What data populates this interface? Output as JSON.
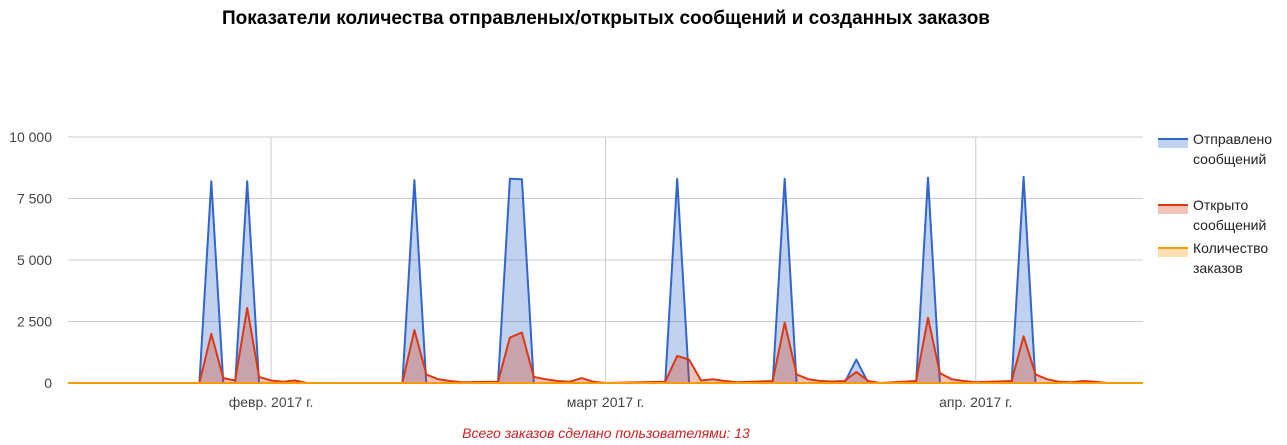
{
  "title": "Показатели количества отправленых/открытых сообщений и созданных заказов",
  "footer": "Всего заказов сделано пользователями: 13",
  "colors": {
    "sent": "#3366cc",
    "opened": "#dc3912",
    "orders": "#ff9900",
    "grid": "#cccccc"
  },
  "chart_data": {
    "type": "area",
    "title": "Показатели количества отправленых/открытых сообщений и созданных заказов",
    "xlabel": "",
    "ylabel": "",
    "ylim": [
      0,
      10000
    ],
    "y_ticks": [
      "0",
      "2 500",
      "5 000",
      "7 500",
      "10 000"
    ],
    "y_tick_values": [
      0,
      2500,
      5000,
      7500,
      10000
    ],
    "x_range": [
      "2017-01-15",
      "2017-04-15"
    ],
    "x_ticks": [
      {
        "label": "февр. 2017 г.",
        "date": "2017-02-01"
      },
      {
        "label": "март 2017 г.",
        "date": "2017-03-01"
      },
      {
        "label": "апр. 2017 г.",
        "date": "2017-04-01"
      }
    ],
    "grid": true,
    "legend_position": "right",
    "series": [
      {
        "name": "Отправлено сообщений",
        "key": "sent",
        "points": [
          [
            "2017-01-15",
            0
          ],
          [
            "2017-01-26",
            0
          ],
          [
            "2017-01-27",
            8200
          ],
          [
            "2017-01-28",
            0
          ],
          [
            "2017-01-29",
            0
          ],
          [
            "2017-01-30",
            8200
          ],
          [
            "2017-01-31",
            0
          ],
          [
            "2017-02-12",
            0
          ],
          [
            "2017-02-13",
            8250
          ],
          [
            "2017-02-14",
            0
          ],
          [
            "2017-02-20",
            0
          ],
          [
            "2017-02-21",
            8300
          ],
          [
            "2017-02-22",
            8280
          ],
          [
            "2017-02-23",
            0
          ],
          [
            "2017-03-06",
            0
          ],
          [
            "2017-03-07",
            8300
          ],
          [
            "2017-03-08",
            0
          ],
          [
            "2017-03-15",
            0
          ],
          [
            "2017-03-16",
            8300
          ],
          [
            "2017-03-17",
            0
          ],
          [
            "2017-03-21",
            0
          ],
          [
            "2017-03-22",
            950
          ],
          [
            "2017-03-23",
            0
          ],
          [
            "2017-03-27",
            0
          ],
          [
            "2017-03-28",
            8350
          ],
          [
            "2017-03-29",
            0
          ],
          [
            "2017-04-04",
            0
          ],
          [
            "2017-04-05",
            8380
          ],
          [
            "2017-04-06",
            0
          ],
          [
            "2017-04-15",
            0
          ]
        ]
      },
      {
        "name": "Открыто сообщений",
        "key": "opened",
        "points": [
          [
            "2017-01-15",
            0
          ],
          [
            "2017-01-26",
            0
          ],
          [
            "2017-01-27",
            2000
          ],
          [
            "2017-01-28",
            200
          ],
          [
            "2017-01-29",
            100
          ],
          [
            "2017-01-30",
            3050
          ],
          [
            "2017-01-31",
            250
          ],
          [
            "2017-02-01",
            100
          ],
          [
            "2017-02-02",
            50
          ],
          [
            "2017-02-03",
            100
          ],
          [
            "2017-02-04",
            0
          ],
          [
            "2017-02-12",
            0
          ],
          [
            "2017-02-13",
            2150
          ],
          [
            "2017-02-14",
            350
          ],
          [
            "2017-02-15",
            150
          ],
          [
            "2017-02-16",
            80
          ],
          [
            "2017-02-17",
            30
          ],
          [
            "2017-02-20",
            50
          ],
          [
            "2017-02-21",
            1850
          ],
          [
            "2017-02-22",
            2050
          ],
          [
            "2017-02-23",
            250
          ],
          [
            "2017-02-24",
            150
          ],
          [
            "2017-02-25",
            80
          ],
          [
            "2017-02-26",
            50
          ],
          [
            "2017-02-27",
            200
          ],
          [
            "2017-02-28",
            50
          ],
          [
            "2017-03-01",
            0
          ],
          [
            "2017-03-06",
            50
          ],
          [
            "2017-03-07",
            1100
          ],
          [
            "2017-03-08",
            950
          ],
          [
            "2017-03-09",
            100
          ],
          [
            "2017-03-10",
            150
          ],
          [
            "2017-03-11",
            80
          ],
          [
            "2017-03-12",
            30
          ],
          [
            "2017-03-15",
            80
          ],
          [
            "2017-03-16",
            2450
          ],
          [
            "2017-03-17",
            350
          ],
          [
            "2017-03-18",
            150
          ],
          [
            "2017-03-19",
            80
          ],
          [
            "2017-03-20",
            60
          ],
          [
            "2017-03-21",
            80
          ],
          [
            "2017-03-22",
            450
          ],
          [
            "2017-03-23",
            80
          ],
          [
            "2017-03-24",
            0
          ],
          [
            "2017-03-27",
            80
          ],
          [
            "2017-03-28",
            2650
          ],
          [
            "2017-03-29",
            400
          ],
          [
            "2017-03-30",
            150
          ],
          [
            "2017-03-31",
            80
          ],
          [
            "2017-04-01",
            30
          ],
          [
            "2017-04-04",
            80
          ],
          [
            "2017-04-05",
            1900
          ],
          [
            "2017-04-06",
            350
          ],
          [
            "2017-04-07",
            150
          ],
          [
            "2017-04-08",
            50
          ],
          [
            "2017-04-09",
            30
          ],
          [
            "2017-04-10",
            80
          ],
          [
            "2017-04-11",
            50
          ],
          [
            "2017-04-12",
            0
          ],
          [
            "2017-04-15",
            0
          ]
        ]
      },
      {
        "name": "Количество заказов",
        "key": "orders",
        "points": [
          [
            "2017-01-15",
            0
          ],
          [
            "2017-04-15",
            0
          ]
        ]
      }
    ]
  }
}
